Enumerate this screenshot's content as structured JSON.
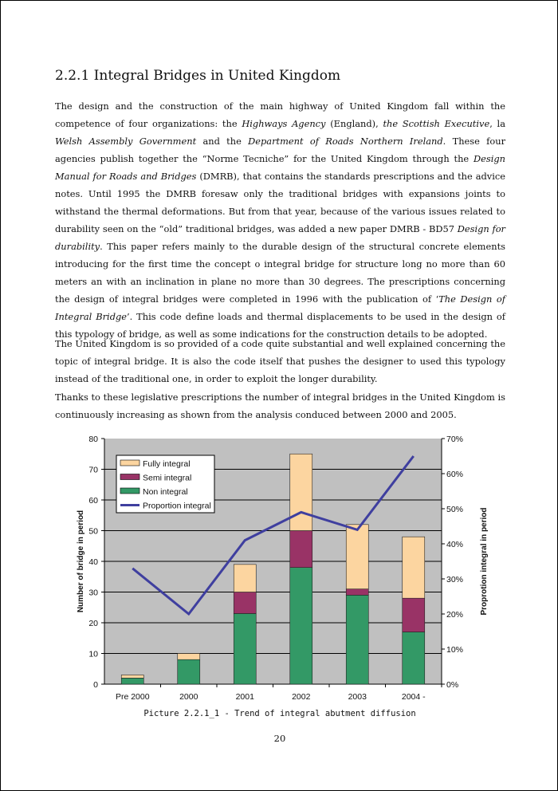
{
  "heading": "2.2.1  Integral Bridges in United Kingdom",
  "paragraphs": [
    {
      "segments": [
        {
          "t": "The design and the construction of the main highway of United Kingdom fall within the competence of four organizations: the "
        },
        {
          "t": "Highways Agency",
          "i": true
        },
        {
          "t": " (England), "
        },
        {
          "t": "the Scottish Executive",
          "i": true
        },
        {
          "t": ", la "
        },
        {
          "t": "Welsh Assembly Government",
          "i": true
        },
        {
          "t": " and the "
        },
        {
          "t": "Department of Roads Northern Ireland",
          "i": true
        },
        {
          "t": ". These four agencies publish together the “Norme Tecniche” for the United Kingdom through the "
        },
        {
          "t": "Design Manual for Roads and Bridges",
          "i": true
        },
        {
          "t": " (DMRB), that contains the standards prescriptions and the advice notes. Until 1995 the DMRB foresaw only the traditional bridges with expansions joints to withstand the thermal deformations. But from that year, because of the various issues related to durability seen on the “old” traditional bridges, was added a new paper DMRB - BD57 "
        },
        {
          "t": "Design for durability",
          "i": true
        },
        {
          "t": ". This paper refers mainly to the durable design of the structural concrete elements introducing for the first time the concept o integral bridge for structure long no more than 60 meters an with an inclination in plane no more than 30 degrees. The prescriptions concerning the design of integral bridges were completed in 1996 with the publication of ‘"
        },
        {
          "t": "The Design of Integral Bridge",
          "i": true
        },
        {
          "t": "’. This code define loads and thermal displacements to be used in the design of this typology of bridge, as well as some indications for the construction details to be adopted."
        }
      ]
    },
    {
      "segments": [
        {
          "t": "The United Kingdom is so provided of a code quite substantial and well explained concerning the topic of integral bridge. It is also the code itself that pushes the designer to used this typology instead of the traditional one, in order to exploit the longer durability."
        }
      ]
    },
    {
      "segments": [
        {
          "t": "Thanks to these legislative prescriptions the number of integral bridges in the United Kingdom is continuously increasing as shown from the analysis conduced between 2000 and 2005."
        }
      ]
    }
  ],
  "chart_data": {
    "type": "bar",
    "stacked": true,
    "categories": [
      "Pre 2000",
      "2000",
      "2001",
      "2002",
      "2003",
      "2004 -"
    ],
    "series": [
      {
        "name": "Non integral",
        "color": "#339966",
        "values": [
          2,
          8,
          23,
          38,
          29,
          17
        ]
      },
      {
        "name": "Semi integral",
        "color": "#993366",
        "values": [
          0,
          0,
          7,
          12,
          2,
          11
        ]
      },
      {
        "name": "Fully integral",
        "color": "#fcd5a0",
        "values": [
          1,
          2,
          9,
          25,
          21,
          20
        ]
      }
    ],
    "line_series": {
      "name": "Proportion integral",
      "color": "#3f3f9f",
      "axis": "right",
      "values": [
        33,
        20,
        41,
        49,
        44,
        65
      ]
    },
    "ylabel": "Number of bridge in period",
    "y2label": "Proprotion integral in period",
    "ylim": [
      0,
      80
    ],
    "y2lim": [
      0,
      70
    ],
    "yticks": [
      0,
      10,
      20,
      30,
      40,
      50,
      60,
      70,
      80
    ],
    "y2ticks": [
      "0%",
      "10%",
      "20%",
      "30%",
      "40%",
      "50%",
      "60%",
      "70%"
    ],
    "legend_order": [
      "Fully integral",
      "Semi integral",
      "Non integral",
      "Proportion integral"
    ],
    "legend": "top-left",
    "grid": true,
    "plot_bg": "#c0c0c0"
  },
  "caption": "Picture 2.2.1_1 - Trend of integral abutment diffusion",
  "page_number": "20"
}
